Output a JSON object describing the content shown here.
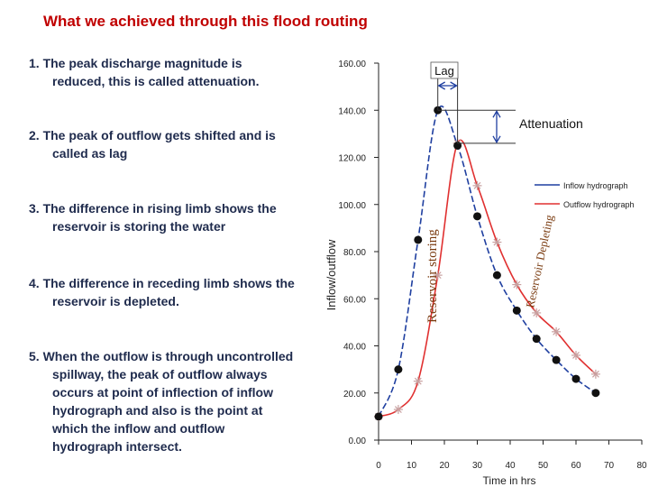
{
  "slide": {
    "title": "What we achieved through this flood routing",
    "points": [
      {
        "line1": "1.  The peak discharge magnitude is",
        "line2": "reduced, this is called attenuation."
      },
      {
        "line1": "2. The peak of outflow gets shifted and is",
        "line2": "called as lag"
      },
      {
        "line1": "3. The difference in rising limb shows the",
        "line2": "reservoir is storing the water"
      },
      {
        "line1": "4. The difference in receding limb  shows the",
        "line2": "reservoir is depleted."
      },
      {
        "line1": "5. When the outflow is through uncontrolled",
        "line2": "spillway, the peak of outflow always",
        "line3": "occurs at point of inflection of inflow",
        "line4": "hydrograph and also is the point at",
        "line5": "which the inflow and outflow",
        "line6": "hydrograph intersect."
      }
    ]
  },
  "chart_data": {
    "type": "line",
    "xlabel": "Time in hrs",
    "ylabel": "Inflow/outflow",
    "xlim": [
      0,
      80
    ],
    "ylim": [
      0,
      160
    ],
    "xticks": [
      "0",
      "10",
      "20",
      "30",
      "40",
      "50",
      "60",
      "70",
      "80"
    ],
    "yticks": [
      "0.00",
      "20.00",
      "40.00",
      "60.00",
      "80.00",
      "100.00",
      "120.00",
      "140.00",
      "160.00"
    ],
    "series": [
      {
        "name": "Inflow hydrograph",
        "color": "#1f3fa0",
        "x": [
          0,
          6,
          12,
          18,
          24,
          30,
          36,
          42,
          48,
          54,
          60,
          66
        ],
        "y": [
          10,
          30,
          85,
          140,
          125,
          95,
          70,
          55,
          43,
          34,
          26,
          20
        ]
      },
      {
        "name": "Outflow hydrograph",
        "color": "#e03030",
        "x": [
          0,
          6,
          12,
          18,
          24,
          30,
          36,
          42,
          48,
          54,
          60,
          66
        ],
        "y": [
          10,
          13,
          25,
          70,
          126,
          108,
          84,
          66,
          54,
          46,
          36,
          28
        ]
      }
    ],
    "annotations": {
      "lag": "Lag",
      "attenuation": "Attenuation",
      "storing": "Reservoir storing",
      "depleting": "Reservoir Depleting"
    }
  }
}
